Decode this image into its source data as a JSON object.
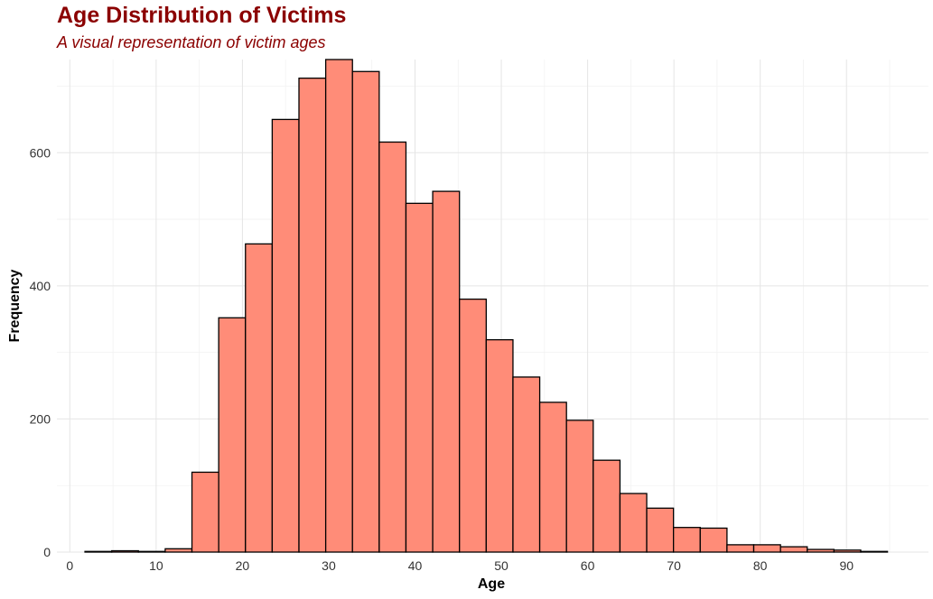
{
  "chart_data": {
    "type": "bar",
    "title": "Age Distribution of Victims",
    "subtitle": "A visual representation of victim ages",
    "xlabel": "Age",
    "ylabel": "Frequency",
    "xlim": [
      -1.5,
      99.5
    ],
    "ylim": [
      0,
      740
    ],
    "x_ticks": [
      0,
      10,
      20,
      30,
      40,
      50,
      60,
      70,
      80,
      90
    ],
    "y_ticks": [
      0,
      200,
      400,
      600
    ],
    "bin_width": 3.1,
    "bins": [
      {
        "x": 3.3,
        "value": 1
      },
      {
        "x": 6.4,
        "value": 2
      },
      {
        "x": 9.5,
        "value": 1
      },
      {
        "x": 12.6,
        "value": 5
      },
      {
        "x": 15.7,
        "value": 120
      },
      {
        "x": 18.8,
        "value": 352
      },
      {
        "x": 21.9,
        "value": 463
      },
      {
        "x": 25.0,
        "value": 650
      },
      {
        "x": 28.1,
        "value": 712
      },
      {
        "x": 31.2,
        "value": 740
      },
      {
        "x": 34.3,
        "value": 722
      },
      {
        "x": 37.4,
        "value": 616
      },
      {
        "x": 40.5,
        "value": 524
      },
      {
        "x": 43.6,
        "value": 542
      },
      {
        "x": 46.7,
        "value": 380
      },
      {
        "x": 49.8,
        "value": 319
      },
      {
        "x": 52.9,
        "value": 263
      },
      {
        "x": 56.0,
        "value": 225
      },
      {
        "x": 59.1,
        "value": 198
      },
      {
        "x": 62.2,
        "value": 138
      },
      {
        "x": 65.3,
        "value": 88
      },
      {
        "x": 68.4,
        "value": 66
      },
      {
        "x": 71.5,
        "value": 37
      },
      {
        "x": 74.6,
        "value": 36
      },
      {
        "x": 77.7,
        "value": 11
      },
      {
        "x": 80.8,
        "value": 11
      },
      {
        "x": 83.9,
        "value": 8
      },
      {
        "x": 87.0,
        "value": 4
      },
      {
        "x": 90.1,
        "value": 3
      },
      {
        "x": 93.2,
        "value": 1
      }
    ],
    "bar_fill": "#ff8c78",
    "bar_stroke": "#000000",
    "title_color": "#8b0000",
    "grid": true
  }
}
